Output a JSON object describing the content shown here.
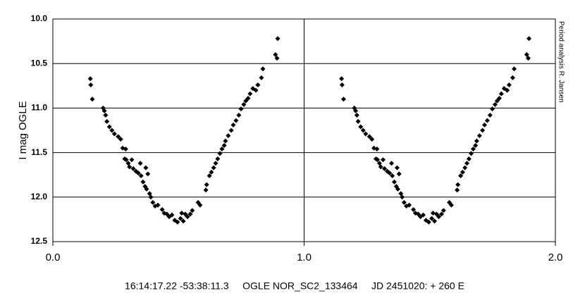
{
  "chart_data": {
    "type": "scatter",
    "y_label": "I mag OGLE",
    "side_note": "Period analysis R. Jansen",
    "caption": "16:14:17.22 -53:38:11.3     OGLE NOR_SC2_133464     JD 2451020: + 260 E",
    "xlim": [
      0,
      2
    ],
    "ylim": [
      12.5,
      10.0
    ],
    "xticks": [
      {
        "value": 0,
        "label": "0.0"
      },
      {
        "value": 1,
        "label": "1.0"
      },
      {
        "value": 2,
        "label": "2.0"
      }
    ],
    "yticks": [
      {
        "value": 10.0,
        "label": "10.0"
      },
      {
        "value": 10.5,
        "label": "10.5"
      },
      {
        "value": 11.0,
        "label": "11.0"
      },
      {
        "value": 11.5,
        "label": "11.5"
      },
      {
        "value": 12.0,
        "label": "12.0"
      },
      {
        "value": 12.5,
        "label": "12.5"
      }
    ],
    "grid": true,
    "color": "#000000",
    "x": [
      0.149,
      0.151,
      0.157,
      0.2,
      0.205,
      0.21,
      0.215,
      0.225,
      0.235,
      0.245,
      0.26,
      0.27,
      0.278,
      0.29,
      0.286,
      0.292,
      0.3,
      0.305,
      0.314,
      0.32,
      0.331,
      0.34,
      0.348,
      0.351,
      0.359,
      0.37,
      0.367,
      0.378,
      0.373,
      0.385,
      0.39,
      0.398,
      0.407,
      0.418,
      0.435,
      0.443,
      0.454,
      0.463,
      0.474,
      0.485,
      0.496,
      0.508,
      0.513,
      0.519,
      0.527,
      0.536,
      0.547,
      0.555,
      0.578,
      0.586,
      0.609,
      0.612,
      0.623,
      0.631,
      0.64,
      0.648,
      0.656,
      0.665,
      0.673,
      0.682,
      0.687,
      0.698,
      0.71,
      0.718,
      0.729,
      0.74,
      0.749,
      0.76,
      0.768,
      0.777,
      0.785,
      0.796,
      0.808,
      0.816,
      0.83,
      0.836,
      0.886,
      0.892,
      0.895,
      1.149,
      1.151,
      1.157,
      1.2,
      1.205,
      1.21,
      1.215,
      1.225,
      1.235,
      1.245,
      1.26,
      1.27,
      1.278,
      1.29,
      1.286,
      1.292,
      1.3,
      1.305,
      1.314,
      1.32,
      1.331,
      1.34,
      1.348,
      1.351,
      1.359,
      1.37,
      1.367,
      1.378,
      1.373,
      1.385,
      1.39,
      1.398,
      1.407,
      1.418,
      1.435,
      1.443,
      1.454,
      1.463,
      1.474,
      1.485,
      1.496,
      1.508,
      1.513,
      1.519,
      1.527,
      1.536,
      1.547,
      1.555,
      1.578,
      1.586,
      1.609,
      1.612,
      1.623,
      1.631,
      1.64,
      1.648,
      1.656,
      1.665,
      1.673,
      1.682,
      1.687,
      1.698,
      1.71,
      1.718,
      1.729,
      1.74,
      1.749,
      1.76,
      1.768,
      1.777,
      1.785,
      1.796,
      1.808,
      1.816,
      1.83,
      1.836,
      1.886,
      1.892,
      1.895
    ],
    "values": [
      10.67,
      10.74,
      10.9,
      11.0,
      11.03,
      11.08,
      11.15,
      11.21,
      11.25,
      11.29,
      11.32,
      11.35,
      11.45,
      11.46,
      11.57,
      11.58,
      11.62,
      11.66,
      11.58,
      11.68,
      11.71,
      11.73,
      11.62,
      11.76,
      11.83,
      11.67,
      11.88,
      11.74,
      11.91,
      11.96,
      12.0,
      12.06,
      12.1,
      12.09,
      12.14,
      12.18,
      12.19,
      12.22,
      12.2,
      12.26,
      12.28,
      12.24,
      12.18,
      12.27,
      12.19,
      12.22,
      12.19,
      12.15,
      12.06,
      12.09,
      11.92,
      11.86,
      11.76,
      11.72,
      11.67,
      11.62,
      11.57,
      11.51,
      11.46,
      11.42,
      11.37,
      11.31,
      11.25,
      11.19,
      11.14,
      11.08,
      11.01,
      10.96,
      10.92,
      10.89,
      10.84,
      10.78,
      10.8,
      10.74,
      10.66,
      10.56,
      10.4,
      10.44,
      10.22,
      10.67,
      10.74,
      10.9,
      11.0,
      11.03,
      11.08,
      11.15,
      11.21,
      11.25,
      11.29,
      11.32,
      11.35,
      11.45,
      11.46,
      11.57,
      11.58,
      11.62,
      11.66,
      11.58,
      11.68,
      11.71,
      11.73,
      11.62,
      11.76,
      11.83,
      11.67,
      11.88,
      11.74,
      11.91,
      11.96,
      12.0,
      12.06,
      12.1,
      12.09,
      12.14,
      12.18,
      12.19,
      12.22,
      12.2,
      12.26,
      12.28,
      12.24,
      12.18,
      12.27,
      12.19,
      12.22,
      12.19,
      12.15,
      12.06,
      12.09,
      11.92,
      11.86,
      11.76,
      11.72,
      11.67,
      11.62,
      11.57,
      11.51,
      11.46,
      11.42,
      11.37,
      11.31,
      11.25,
      11.19,
      11.14,
      11.08,
      11.01,
      10.96,
      10.92,
      10.89,
      10.84,
      10.78,
      10.8,
      10.74,
      10.66,
      10.56,
      10.4,
      10.44,
      10.22
    ]
  }
}
